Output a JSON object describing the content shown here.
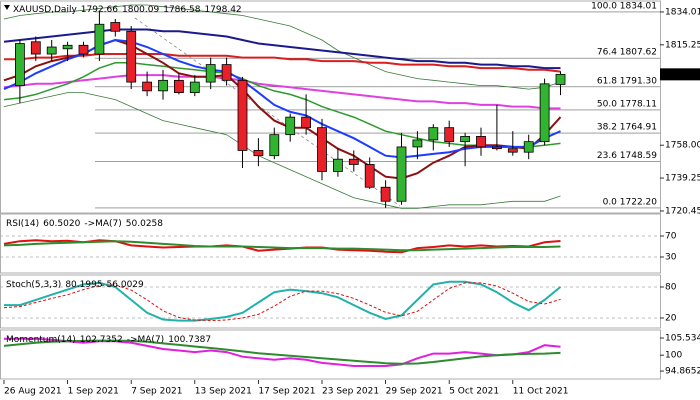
{
  "chart_data": [
    {
      "type": "candlestick",
      "title": "XAUUSD,Daily",
      "categories": [
        "26 Aug 2021",
        null,
        null,
        null,
        "1 Sep 2021",
        null,
        null,
        null,
        "7 Sep 2021",
        null,
        null,
        null,
        "13 Sep 2021",
        null,
        null,
        null,
        "17 Sep 2021",
        null,
        null,
        null,
        "23 Sep 2021",
        null,
        null,
        null,
        "29 Sep 2021",
        null,
        null,
        null,
        "5 Oct 2021",
        null,
        null,
        null,
        "11 Oct 2021",
        null,
        null,
        null
      ],
      "ohlc": [
        null,
        [
          1792,
          1818,
          1782,
          1816
        ],
        [
          1817,
          1820,
          1806,
          1810
        ],
        [
          1810,
          1818,
          1806,
          1814
        ],
        [
          1813,
          1817,
          1806,
          1815
        ],
        [
          1815,
          1817,
          1808,
          1810
        ],
        [
          1810,
          1834.01,
          1806,
          1827
        ],
        [
          1828,
          1830,
          1820,
          1823
        ],
        [
          1823,
          1826,
          1790,
          1794
        ],
        [
          1794,
          1800,
          1786,
          1789
        ],
        [
          1789,
          1801,
          1784,
          1795
        ],
        [
          1795,
          1799,
          1787,
          1788
        ],
        [
          1788,
          1798,
          1786,
          1794
        ],
        [
          1794,
          1808,
          1790,
          1804
        ],
        [
          1804,
          1808,
          1792,
          1795
        ],
        [
          1795,
          1797,
          1745,
          1755
        ],
        [
          1755,
          1762,
          1746,
          1752
        ],
        [
          1752,
          1768,
          1750,
          1764
        ],
        [
          1764,
          1776,
          1760,
          1774
        ],
        [
          1774,
          1787,
          1764,
          1768
        ],
        [
          1768,
          1773,
          1738,
          1743
        ],
        [
          1743,
          1756,
          1740,
          1750
        ],
        [
          1750,
          1755,
          1743,
          1747
        ],
        [
          1747,
          1751,
          1733,
          1734
        ],
        [
          1734,
          1738,
          1722.2,
          1726
        ],
        [
          1726,
          1765,
          1724,
          1757
        ],
        [
          1757,
          1766,
          1750,
          1761
        ],
        [
          1761,
          1770,
          1755,
          1768
        ],
        [
          1768,
          1772,
          1757,
          1760
        ],
        [
          1760,
          1765,
          1746,
          1763
        ],
        [
          1763,
          1768,
          1752,
          1757
        ],
        [
          1757,
          1781,
          1755,
          1756
        ],
        [
          1756,
          1766,
          1752,
          1754
        ],
        [
          1754,
          1764,
          1750,
          1760
        ],
        [
          1760,
          1796,
          1758,
          1793
        ],
        [
          1792.66,
          1800.09,
          1786.58,
          1798.42
        ]
      ],
      "up_color": "#32b432",
      "down_color": "#e8202a",
      "ylim": [
        1719.3,
        1839.7
      ],
      "yticks": [
        1834.01,
        1815.25,
        {
          "value": 1758,
          "label": "1758.00"
        },
        1739.25,
        1720.45
      ],
      "fib_levels": [
        {
          "label": "100.0 1834.01",
          "value": 1834.01
        },
        {
          "label": "76.4 1807.62",
          "value": 1807.62
        },
        {
          "label": "61.8 1791.30",
          "value": 1791.3
        },
        {
          "label": "50.0 1778.11",
          "value": 1778.11
        },
        {
          "label": "38.2 1764.91",
          "value": 1764.91
        },
        {
          "label": "23.6 1748.59",
          "value": 1748.59
        },
        {
          "label": "0.0 1722.20",
          "value": 1722.2
        }
      ],
      "lines": [
        {
          "color": "#3a7a3a",
          "width": 0.8,
          "values": [
            1830,
            1832,
            1833,
            1834,
            1834,
            1835,
            1836,
            1837,
            1838,
            1838,
            1837,
            1836,
            1835,
            1834,
            1833,
            1832,
            1830,
            1828,
            1826,
            1822,
            1818,
            1812,
            1808,
            1804,
            1800,
            1798,
            1796,
            1795,
            1794,
            1793,
            1792,
            1792,
            1791,
            1790,
            1791,
            1794
          ]
        },
        {
          "color": "#3a7a3a",
          "width": 0.8,
          "values": [
            1780,
            1782,
            1784,
            1786,
            1788,
            1788,
            1786,
            1784,
            1780,
            1776,
            1772,
            1770,
            1768,
            1766,
            1764,
            1758,
            1752,
            1748,
            1744,
            1740,
            1736,
            1732,
            1728,
            1726,
            1724,
            1722,
            1722,
            1723,
            1724,
            1724,
            1724,
            1725,
            1726,
            1726,
            1726,
            1729
          ]
        },
        {
          "color": "#1a1a8c",
          "width": 2,
          "values": [
            1817,
            1818,
            1819,
            1820,
            1821,
            1822,
            1823,
            1824,
            1824,
            1824,
            1823,
            1823,
            1822,
            1821,
            1820,
            1818,
            1816,
            1815,
            1814,
            1813,
            1812,
            1811,
            1810,
            1809,
            1808,
            1807,
            1806,
            1806,
            1805,
            1805,
            1804,
            1804,
            1803,
            1803,
            1802,
            1802
          ]
        },
        {
          "color": "#d81e1e",
          "width": 2,
          "values": [
            1807,
            1807,
            1808,
            1808,
            1809,
            1809,
            1810,
            1810,
            1810,
            1810,
            1810,
            1809,
            1809,
            1809,
            1809,
            1808,
            1808,
            1808,
            1807,
            1807,
            1806,
            1806,
            1806,
            1805,
            1805,
            1804,
            1804,
            1804,
            1803,
            1803,
            1802,
            1802,
            1802,
            1801,
            1801,
            1800
          ]
        },
        {
          "color": "#e040e0",
          "width": 2,
          "values": [
            1791,
            1792,
            1793,
            1793,
            1794,
            1795,
            1796,
            1797,
            1798,
            1798,
            1798,
            1797,
            1797,
            1797,
            1796,
            1795,
            1793,
            1792,
            1791,
            1790,
            1789,
            1788,
            1787,
            1786,
            1785,
            1784,
            1783,
            1783,
            1782,
            1782,
            1781,
            1781,
            1780,
            1780,
            1779,
            1779
          ]
        },
        {
          "color": "#2e9a2e",
          "width": 1.5,
          "values": [
            1784,
            1785,
            1787,
            1790,
            1793,
            1797,
            1802,
            1805,
            1805,
            1804,
            1803,
            1802,
            1801,
            1800,
            1799,
            1796,
            1792,
            1789,
            1787,
            1784,
            1780,
            1777,
            1774,
            1770,
            1766,
            1764,
            1762,
            1760,
            1759,
            1758,
            1758,
            1757,
            1757,
            1757,
            1758,
            1759
          ]
        },
        {
          "color": "#8b1010",
          "width": 2,
          "values": [
            1795,
            1798,
            1803,
            1806,
            1808,
            1810,
            1815,
            1818,
            1815,
            1810,
            1805,
            1799,
            1797,
            1797,
            1798,
            1790,
            1780,
            1772,
            1768,
            1768,
            1762,
            1756,
            1752,
            1746,
            1740,
            1739,
            1742,
            1748,
            1752,
            1757,
            1758,
            1758,
            1757,
            1756,
            1764,
            1774
          ]
        },
        {
          "color": "#1e3cff",
          "width": 2,
          "values": [
            1790,
            1794,
            1799,
            1803,
            1807,
            1810,
            1815,
            1818,
            1817,
            1814,
            1810,
            1806,
            1803,
            1801,
            1800,
            1795,
            1788,
            1781,
            1777,
            1775,
            1770,
            1766,
            1762,
            1757,
            1752,
            1751,
            1752,
            1753,
            1754,
            1756,
            1757,
            1757,
            1757,
            1757,
            1762,
            1766
          ]
        }
      ]
    },
    {
      "type": "line",
      "ylim": [
        -0.5,
        110
      ],
      "yticks": [
        70,
        30
      ],
      "levels": true,
      "series": [
        {
          "name": "RSI(14)",
          "value_label": "60.5020",
          "color": "#e01010",
          "values": [
            55,
            60,
            62,
            60,
            61,
            58,
            62,
            60,
            52,
            50,
            48,
            49,
            50,
            50,
            52,
            50,
            42,
            44,
            46,
            48,
            48,
            44,
            43,
            42,
            40,
            39,
            47,
            49,
            52,
            50,
            52,
            50,
            51,
            50,
            58,
            60.502
          ]
        },
        {
          "name": "->MA(7)",
          "value_label": "50.0258",
          "color": "#2e8b2e",
          "values": [
            52,
            53,
            55,
            56,
            57,
            58,
            59,
            60,
            59,
            57,
            55,
            53,
            51,
            50,
            50,
            50,
            49,
            48,
            47,
            47,
            47,
            46,
            46,
            45,
            44,
            43,
            43,
            44,
            45,
            46,
            47,
            48,
            49,
            49,
            49,
            50.0258
          ]
        }
      ]
    },
    {
      "type": "line",
      "title": "Stoch(5,3,3)",
      "ylim": [
        0.6,
        101.3
      ],
      "yticks": [
        80,
        20
      ],
      "levels": true,
      "series": [
        {
          "value_label": "80.1995",
          "color": "#20b2aa",
          "values": [
            45,
            45,
            55,
            65,
            75,
            85,
            88,
            80,
            55,
            30,
            17,
            15,
            15,
            18,
            22,
            30,
            50,
            70,
            75,
            72,
            68,
            60,
            45,
            30,
            18,
            25,
            55,
            85,
            90,
            90,
            85,
            70,
            50,
            35,
            55,
            80.1995
          ]
        },
        {
          "value_label": "56.0029",
          "color": "#e01010",
          "dash": true,
          "values": [
            40,
            42,
            50,
            58,
            65,
            75,
            83,
            84,
            74,
            55,
            34,
            21,
            16,
            15,
            16,
            20,
            27,
            43,
            62,
            72,
            72,
            67,
            58,
            45,
            31,
            24,
            33,
            55,
            77,
            88,
            88,
            82,
            68,
            52,
            47,
            56.0029
          ]
        }
      ]
    },
    {
      "type": "line",
      "ylim": [
        92.3,
        107.8
      ],
      "yticks": [
        105.5341,
        100,
        94.8652
      ],
      "levels": false,
      "series": [
        {
          "name": "Momentum(14)",
          "value_label": "102.7352",
          "color": "#e020e0",
          "values": [
            105.3,
            105.3,
            105.3,
            105,
            104.5,
            104,
            104.5,
            104.5,
            104,
            103,
            102,
            101.5,
            101,
            101.5,
            101,
            99.5,
            99,
            98.5,
            99,
            98.5,
            97.5,
            97,
            96.5,
            96.5,
            96.5,
            97,
            99,
            100.5,
            100.5,
            101,
            100.5,
            100,
            100.2,
            101,
            103.2,
            102.7352
          ]
        },
        {
          "name": "->MA(7)",
          "value_label": "100.7387",
          "color": "#2e8b2e",
          "values": [
            103,
            103.5,
            104,
            104.3,
            104.5,
            104.6,
            104.7,
            104.7,
            104.6,
            104.3,
            103.8,
            103.3,
            102.8,
            102.3,
            101.8,
            101.2,
            100.6,
            100.2,
            99.8,
            99.4,
            99,
            98.6,
            98.2,
            97.8,
            97.4,
            97.2,
            97.3,
            97.8,
            98.4,
            99,
            99.6,
            100,
            100.3,
            100.4,
            100.5,
            100.7387
          ]
        }
      ]
    }
  ]
}
